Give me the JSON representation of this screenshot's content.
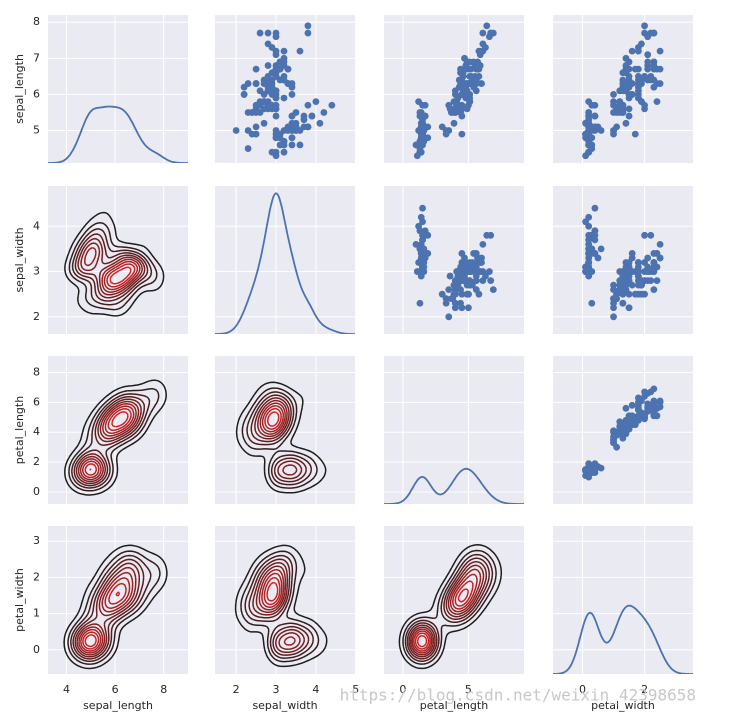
{
  "chart_data": {
    "type": "pairplot",
    "variables": [
      "sepal_length",
      "sepal_width",
      "petal_length",
      "petal_width"
    ],
    "data": [
      [
        5.1,
        4.9,
        4.7,
        4.6,
        5.0,
        5.4,
        4.6,
        5.0,
        4.4,
        4.9,
        5.4,
        4.8,
        4.8,
        4.3,
        5.8,
        5.7,
        5.4,
        5.1,
        5.7,
        5.1,
        5.4,
        5.1,
        4.6,
        5.1,
        4.8,
        5.0,
        5.0,
        5.2,
        5.2,
        4.7,
        4.8,
        5.4,
        5.2,
        5.5,
        4.9,
        5.0,
        5.5,
        4.9,
        4.4,
        5.1,
        5.0,
        4.5,
        4.4,
        5.0,
        5.1,
        4.8,
        5.1,
        4.6,
        5.3,
        5.0,
        7.0,
        6.4,
        6.9,
        5.5,
        6.5,
        5.7,
        6.3,
        4.9,
        6.6,
        5.2,
        5.0,
        5.9,
        6.0,
        6.1,
        5.6,
        6.7,
        5.6,
        5.8,
        6.2,
        5.6,
        5.9,
        6.1,
        6.3,
        6.1,
        6.4,
        6.6,
        6.8,
        6.7,
        6.0,
        5.7,
        5.5,
        5.5,
        5.8,
        6.0,
        5.4,
        6.0,
        6.7,
        6.3,
        5.6,
        5.5,
        5.5,
        6.1,
        5.8,
        5.0,
        5.6,
        5.7,
        5.7,
        6.2,
        5.1,
        5.7,
        6.3,
        5.8,
        7.1,
        6.3,
        6.5,
        7.6,
        4.9,
        7.3,
        6.7,
        7.2,
        6.5,
        6.4,
        6.8,
        5.7,
        5.8,
        6.4,
        6.5,
        7.7,
        7.7,
        6.0,
        6.9,
        5.6,
        7.7,
        6.3,
        6.7,
        7.2,
        6.2,
        6.1,
        6.4,
        7.2,
        7.4,
        7.9,
        6.4,
        6.3,
        6.1,
        7.7,
        6.3,
        6.4,
        6.0,
        6.9,
        6.7,
        6.9,
        5.8,
        6.8,
        6.7,
        6.7,
        6.3,
        6.5,
        6.2,
        5.9
      ],
      [
        3.5,
        3.0,
        3.2,
        3.1,
        3.6,
        3.9,
        3.4,
        3.4,
        2.9,
        3.1,
        3.7,
        3.4,
        3.0,
        3.0,
        4.0,
        4.4,
        3.9,
        3.5,
        3.8,
        3.8,
        3.4,
        3.7,
        3.6,
        3.3,
        3.4,
        3.0,
        3.4,
        3.5,
        3.4,
        3.2,
        3.1,
        3.4,
        4.1,
        4.2,
        3.1,
        3.2,
        3.5,
        3.1,
        3.0,
        3.4,
        3.5,
        2.3,
        3.2,
        3.5,
        3.8,
        3.0,
        3.8,
        3.2,
        3.7,
        3.3,
        3.2,
        3.2,
        3.1,
        2.3,
        2.8,
        2.8,
        3.3,
        2.4,
        2.9,
        2.7,
        2.0,
        3.0,
        2.2,
        2.9,
        2.9,
        3.1,
        3.0,
        2.7,
        2.2,
        2.5,
        3.2,
        2.8,
        2.5,
        2.8,
        2.9,
        3.0,
        2.8,
        3.0,
        2.9,
        2.6,
        2.4,
        2.4,
        2.7,
        2.7,
        3.0,
        3.4,
        3.1,
        2.3,
        3.0,
        2.5,
        2.6,
        3.0,
        2.6,
        2.3,
        2.7,
        3.0,
        2.9,
        2.9,
        2.5,
        2.8,
        3.3,
        2.7,
        3.0,
        2.9,
        3.0,
        3.0,
        2.5,
        2.9,
        2.5,
        3.6,
        3.2,
        2.7,
        3.0,
        2.5,
        2.8,
        3.2,
        3.0,
        3.8,
        2.6,
        2.2,
        3.2,
        2.8,
        2.8,
        2.7,
        3.3,
        3.2,
        2.8,
        3.0,
        2.8,
        3.0,
        2.8,
        3.8,
        2.8,
        2.8,
        2.6,
        3.0,
        3.4,
        3.1,
        3.0,
        3.1,
        3.1,
        3.1,
        2.7,
        3.2,
        3.3,
        3.0,
        2.5,
        3.0,
        3.4,
        3.0
      ],
      [
        1.4,
        1.4,
        1.3,
        1.5,
        1.4,
        1.7,
        1.4,
        1.5,
        1.4,
        1.5,
        1.5,
        1.6,
        1.4,
        1.1,
        1.2,
        1.5,
        1.3,
        1.4,
        1.7,
        1.5,
        1.7,
        1.5,
        1.0,
        1.7,
        1.9,
        1.6,
        1.6,
        1.5,
        1.4,
        1.6,
        1.6,
        1.5,
        1.5,
        1.4,
        1.5,
        1.2,
        1.3,
        1.5,
        1.3,
        1.5,
        1.3,
        1.3,
        1.3,
        1.6,
        1.9,
        1.4,
        1.6,
        1.4,
        1.5,
        1.4,
        4.7,
        4.5,
        4.9,
        4.0,
        4.6,
        4.5,
        4.7,
        3.3,
        4.6,
        3.9,
        3.5,
        4.2,
        4.0,
        4.7,
        3.6,
        4.4,
        4.5,
        4.1,
        4.5,
        3.9,
        4.8,
        4.0,
        4.9,
        4.7,
        4.3,
        4.4,
        4.8,
        5.0,
        4.5,
        3.5,
        3.8,
        3.7,
        3.9,
        5.1,
        4.5,
        4.5,
        4.7,
        4.4,
        4.1,
        4.0,
        4.4,
        4.6,
        4.0,
        3.3,
        4.2,
        4.2,
        4.2,
        4.3,
        3.0,
        4.1,
        6.0,
        5.1,
        5.9,
        5.6,
        5.8,
        6.6,
        4.5,
        6.3,
        5.8,
        6.1,
        5.1,
        5.3,
        5.5,
        5.0,
        5.1,
        5.3,
        5.5,
        6.7,
        6.9,
        5.0,
        5.7,
        4.9,
        6.7,
        4.9,
        5.7,
        6.0,
        4.8,
        4.9,
        5.6,
        5.8,
        6.1,
        6.4,
        5.6,
        5.1,
        5.6,
        6.1,
        5.6,
        5.5,
        4.8,
        5.4,
        5.6,
        5.1,
        5.1,
        5.9,
        5.7,
        5.2,
        5.0,
        5.2,
        5.4,
        5.1
      ],
      [
        0.2,
        0.2,
        0.2,
        0.2,
        0.2,
        0.4,
        0.3,
        0.2,
        0.2,
        0.1,
        0.2,
        0.2,
        0.1,
        0.1,
        0.2,
        0.4,
        0.4,
        0.3,
        0.3,
        0.3,
        0.2,
        0.4,
        0.2,
        0.5,
        0.2,
        0.2,
        0.4,
        0.2,
        0.2,
        0.2,
        0.2,
        0.4,
        0.1,
        0.2,
        0.1,
        0.2,
        0.2,
        0.1,
        0.2,
        0.2,
        0.3,
        0.3,
        0.2,
        0.6,
        0.4,
        0.3,
        0.2,
        0.2,
        0.2,
        0.2,
        1.4,
        1.5,
        1.5,
        1.3,
        1.5,
        1.3,
        1.6,
        1.0,
        1.3,
        1.4,
        1.0,
        1.5,
        1.0,
        1.4,
        1.3,
        1.4,
        1.5,
        1.0,
        1.5,
        1.1,
        1.8,
        1.3,
        1.5,
        1.2,
        1.3,
        1.4,
        1.4,
        1.7,
        1.5,
        1.0,
        1.1,
        1.0,
        1.2,
        1.6,
        1.5,
        1.6,
        1.5,
        1.3,
        1.3,
        1.3,
        1.2,
        1.4,
        1.2,
        1.0,
        1.3,
        1.2,
        1.3,
        1.3,
        1.1,
        1.3,
        2.5,
        1.9,
        2.1,
        1.8,
        2.2,
        2.1,
        1.7,
        1.8,
        1.8,
        2.5,
        2.0,
        1.9,
        2.1,
        2.0,
        2.4,
        2.3,
        1.8,
        2.2,
        2.3,
        1.5,
        2.3,
        2.0,
        2.0,
        1.8,
        2.1,
        1.8,
        1.8,
        1.8,
        2.1,
        1.6,
        1.9,
        2.0,
        2.2,
        1.5,
        1.4,
        2.3,
        2.4,
        1.8,
        1.8,
        2.1,
        2.4,
        2.3,
        1.9,
        2.3,
        2.5,
        2.3,
        1.9,
        2.0,
        2.3,
        1.8
      ]
    ],
    "xlim": [
      [
        3.24,
        9.0
      ],
      [
        1.47,
        4.98
      ],
      [
        -1.44,
        9.24
      ],
      [
        -0.95,
        3.56
      ]
    ],
    "xticks": [
      [
        4,
        6,
        8
      ],
      [
        2,
        3,
        4,
        5
      ],
      [
        0,
        5
      ],
      [
        0,
        2
      ]
    ],
    "ylim": [
      [
        4.1,
        8.2
      ],
      [
        1.62,
        4.89
      ],
      [
        -0.8,
        9.1
      ],
      [
        -0.67,
        3.42
      ]
    ],
    "yticks": [
      [
        5,
        6,
        7,
        8
      ],
      [
        2,
        3,
        4
      ],
      [
        0,
        2,
        4,
        6,
        8
      ],
      [
        0,
        1,
        2,
        3
      ]
    ],
    "color": "#4c72b0",
    "contour_colors": [
      "#1c1c1c",
      "#d42020"
    ],
    "contour_levels": 10,
    "grid": true,
    "watermark": "https://blog.csdn.net/weixin_42398658"
  }
}
